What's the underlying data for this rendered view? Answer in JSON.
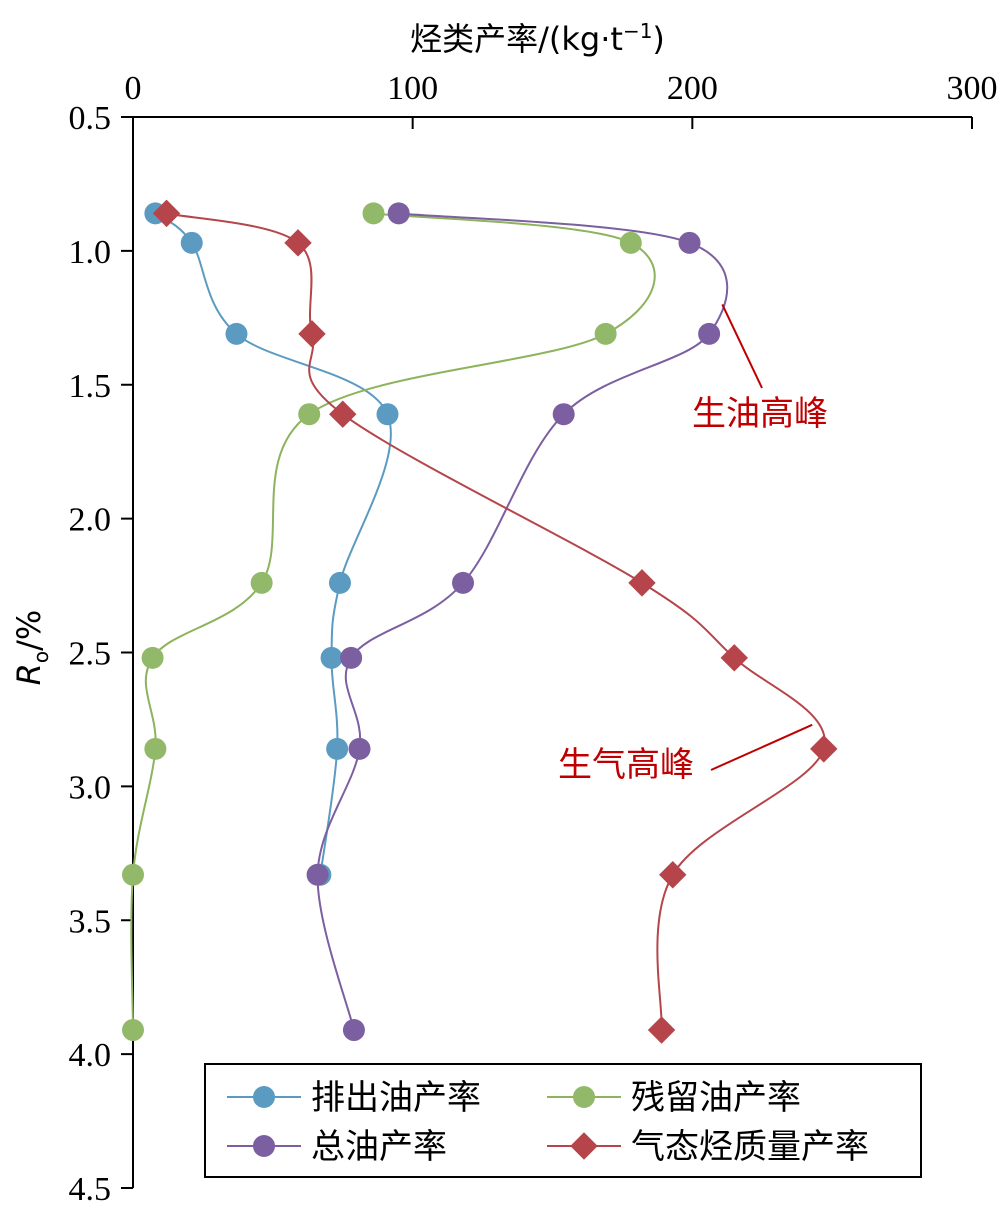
{
  "chart_data": {
    "type": "line",
    "orientation": "vertical-depth",
    "x_axis": {
      "label": "烃类产率/(kg·t",
      "label_sup": "−1",
      "label_close": ")",
      "position": "top",
      "lim": [
        0,
        300
      ],
      "ticks": [
        0,
        100,
        200,
        300
      ]
    },
    "y_axis": {
      "label_main": "R",
      "label_sub": "o",
      "label_tail": "/%",
      "inverted": true,
      "lim": [
        0.5,
        4.5
      ],
      "ticks": [
        "0.5",
        "1.0",
        "1.5",
        "2.0",
        "2.5",
        "3.0",
        "3.5",
        "4.0",
        "4.5"
      ]
    },
    "grid": false,
    "series": [
      {
        "name": "排出油产率",
        "color": "#5b9bc2",
        "line_color": "#5b9bc2",
        "marker": "circle",
        "points": [
          [
            8,
            0.86
          ],
          [
            21,
            0.97
          ],
          [
            37,
            1.31
          ],
          [
            91,
            1.61
          ],
          [
            74,
            2.24
          ],
          [
            71,
            2.52
          ],
          [
            73,
            2.86
          ],
          [
            67,
            3.33
          ]
        ]
      },
      {
        "name": "残留油产率",
        "color": "#92b96a",
        "line_color": "#8db35c",
        "marker": "circle",
        "points": [
          [
            86,
            0.86
          ],
          [
            178,
            0.97
          ],
          [
            169,
            1.31
          ],
          [
            63,
            1.61
          ],
          [
            46,
            2.24
          ],
          [
            7,
            2.52
          ],
          [
            8,
            2.86
          ],
          [
            0,
            3.33
          ],
          [
            0,
            3.91
          ]
        ]
      },
      {
        "name": "总油产率",
        "color": "#7b5fa0",
        "line_color": "#7b5fa0",
        "marker": "circle",
        "points": [
          [
            95,
            0.86
          ],
          [
            199,
            0.97
          ],
          [
            206,
            1.31
          ],
          [
            154,
            1.61
          ],
          [
            118,
            2.24
          ],
          [
            78,
            2.52
          ],
          [
            81,
            2.86
          ],
          [
            66,
            3.33
          ],
          [
            79,
            3.91
          ]
        ]
      },
      {
        "name": "气态烃质量产率",
        "color": "#b5454a",
        "line_color": "#b5454a",
        "marker": "diamond",
        "points": [
          [
            12,
            0.86
          ],
          [
            59,
            0.97
          ],
          [
            64,
            1.31
          ],
          [
            75,
            1.61
          ],
          [
            182,
            2.24
          ],
          [
            215,
            2.52
          ],
          [
            247,
            2.86
          ],
          [
            193,
            3.33
          ],
          [
            189,
            3.91
          ]
        ]
      }
    ],
    "annotations": [
      {
        "text": "生油高峰",
        "color": "#c00000",
        "point": [
          210,
          1.17
        ],
        "text_at": [
          215,
          1.6
        ]
      },
      {
        "text": "生气高峰",
        "color": "#c00000",
        "point": [
          245,
          2.8
        ],
        "text_at": [
          210,
          2.9
        ]
      }
    ],
    "legend": {
      "placement": "bottom",
      "entries": [
        "排出油产率",
        "残留油产率",
        "总油产率",
        "气态烃质量产率"
      ]
    }
  }
}
